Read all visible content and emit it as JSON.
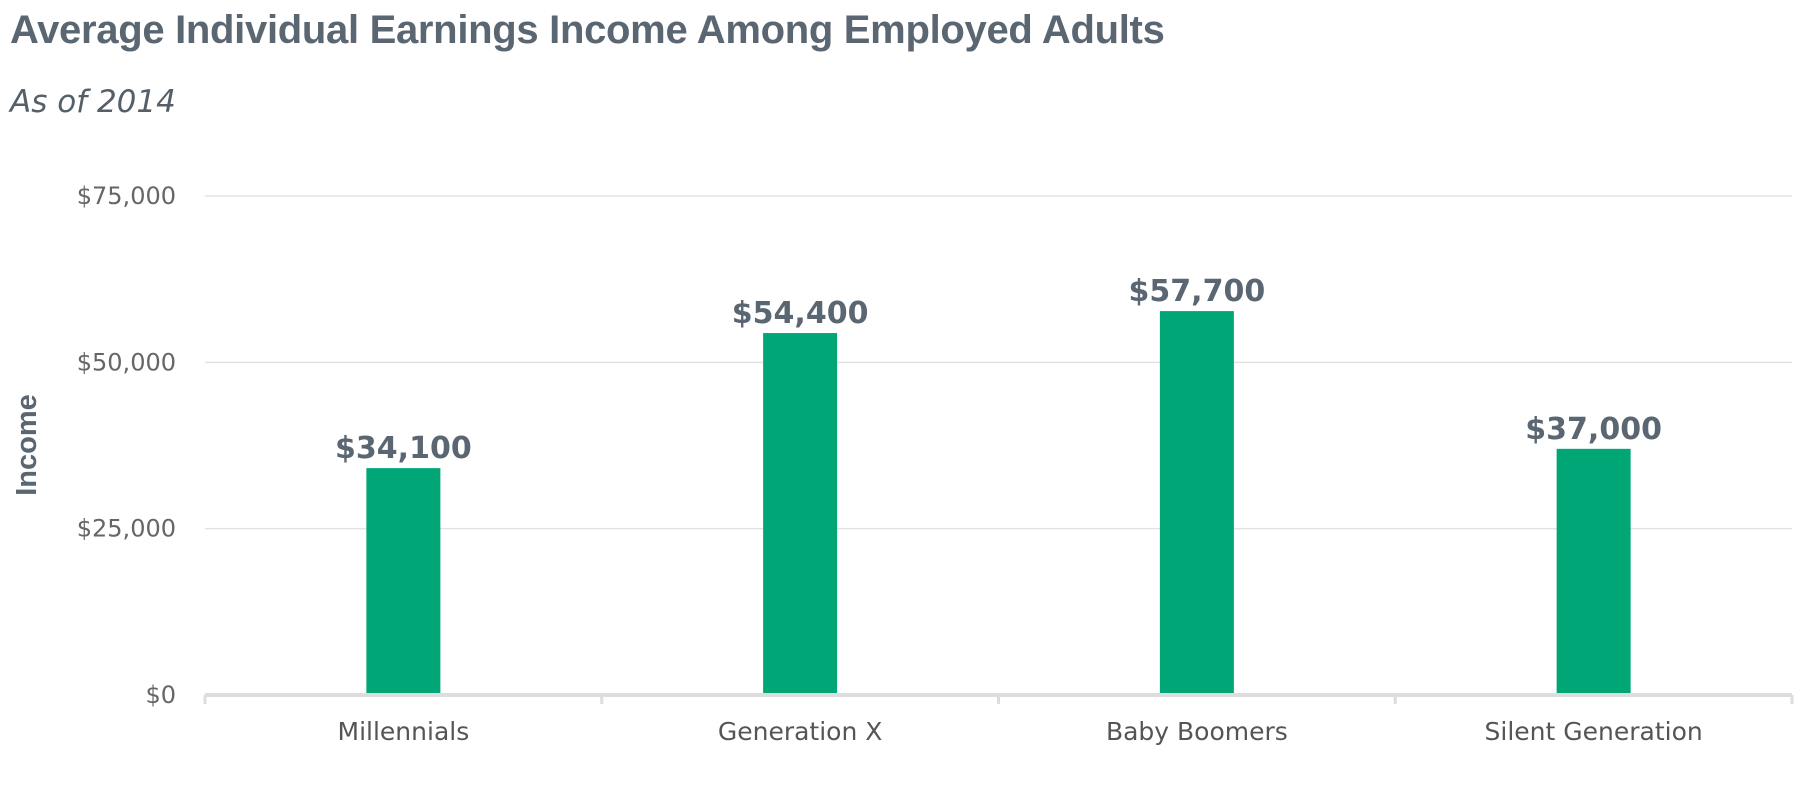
{
  "chart_data": {
    "type": "bar",
    "title": "Average Individual Earnings Income Among Employed Adults",
    "subtitle": "As of 2014",
    "xlabel": "",
    "ylabel": "Income",
    "categories": [
      "Millennials",
      "Generation X",
      "Baby Boomers",
      "Silent Generation"
    ],
    "values": [
      34100,
      54400,
      57700,
      37000
    ],
    "data_labels": [
      "$34,100",
      "$54,400",
      "$57,700",
      "$37,000"
    ],
    "y_ticks": [
      0,
      25000,
      50000,
      75000
    ],
    "y_tick_labels": [
      "$0",
      "$25,000",
      "$50,000",
      "$75,000"
    ],
    "ylim": [
      0,
      75000
    ],
    "grid": true,
    "legend": "none",
    "bar_color": "#00a676"
  }
}
